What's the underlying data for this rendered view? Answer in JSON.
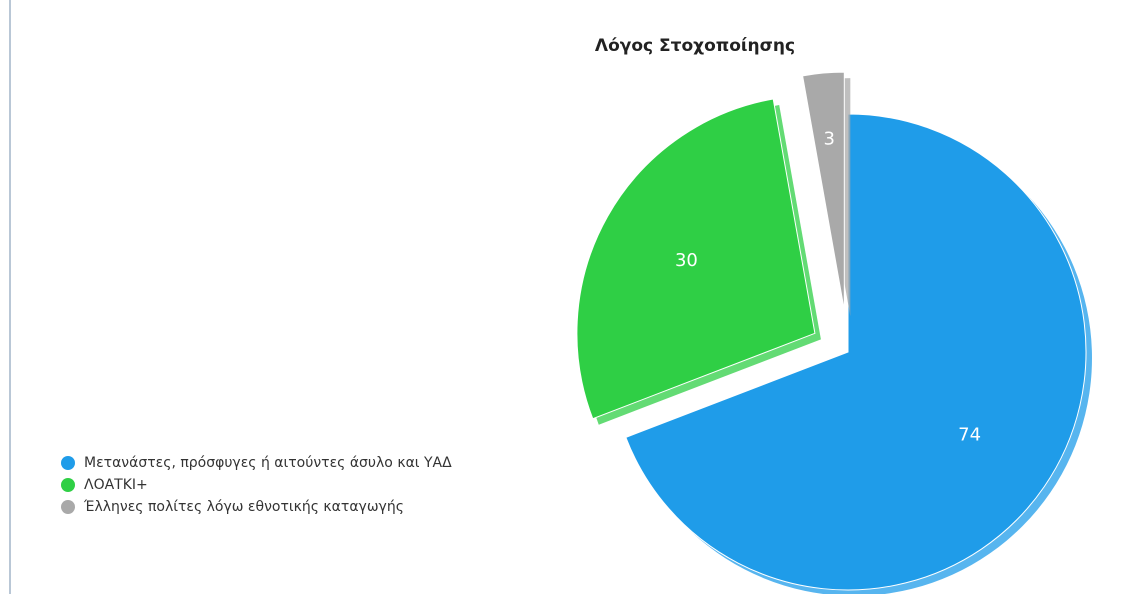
{
  "chart_data": {
    "type": "pie",
    "title": "Λόγος Στοχοποίησης",
    "categories": [
      "Μετανάστες, πρόσφυγες ή αιτούντες άσυλο και ΥΑΔ",
      "ΛΟΑΤΚΙ+",
      "Έλληνες πολίτες λόγω εθνοτικής καταγωγής"
    ],
    "values": [
      74,
      30,
      3
    ],
    "colors": [
      "#1f9ce9",
      "#2fcf45",
      "#a9a9a9"
    ],
    "legend": "bottom-left"
  }
}
